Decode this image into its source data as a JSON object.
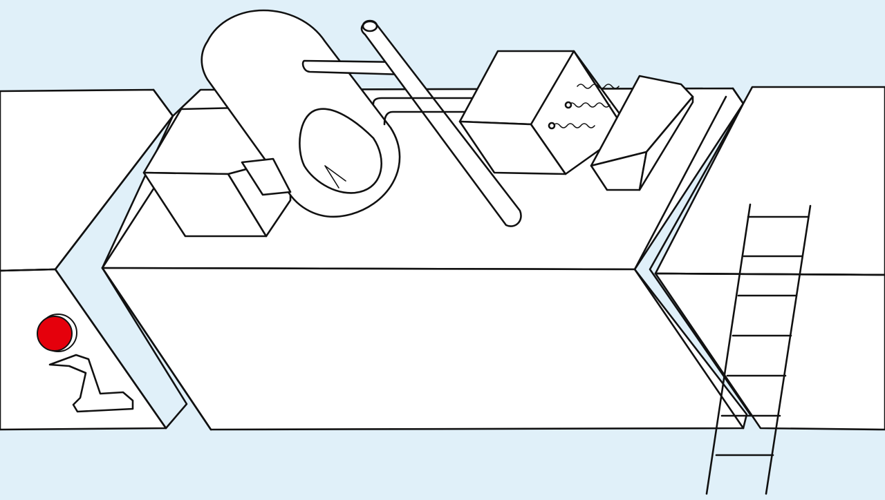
{
  "scene": {
    "background_color": "#e0f0f9",
    "line_color": "#111111",
    "paper_color": "#ffffff"
  },
  "hotspots": {
    "alert_dot": {
      "icon": "red-circle-icon",
      "color": "#e5000c"
    },
    "info_icon": {
      "icon": "info-i-icon"
    }
  },
  "objects": [
    "left-cube",
    "capsule-tank",
    "t-pipe",
    "vent-box",
    "small-box",
    "ladder"
  ]
}
